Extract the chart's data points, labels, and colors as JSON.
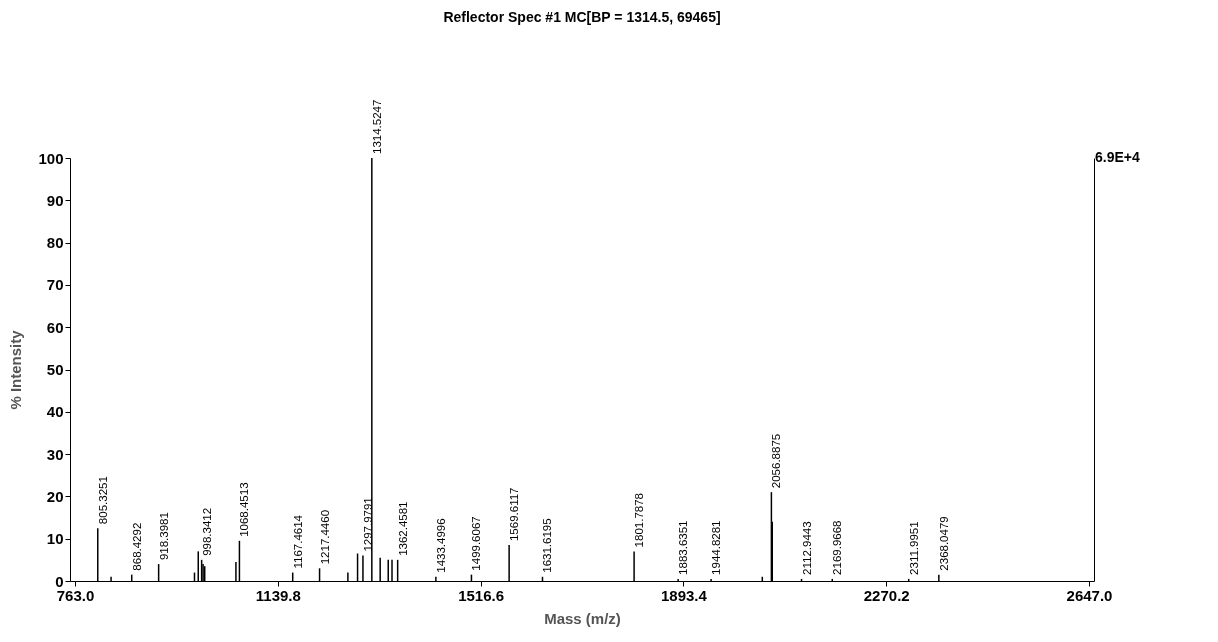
{
  "chart_data": {
    "type": "bar",
    "title": "Reflector Spec #1 MC[BP = 1314.5, 69465]",
    "xlabel": "Mass (m/z)",
    "ylabel": "% Intensity",
    "x": [
      805.3,
      830,
      868.4,
      918.4,
      985,
      992,
      998.3,
      1001,
      1004,
      1062,
      1068.5,
      1167.5,
      1217.4,
      1270,
      1288,
      1298,
      1314.5,
      1330,
      1345,
      1352,
      1362.5,
      1433.5,
      1499.6,
      1569.6,
      1631.6,
      1801.8,
      1883.6,
      1944.8,
      2040,
      2056.9,
      2058.5,
      2112.9,
      2170,
      2312,
      2368
    ],
    "series": [
      {
        "color": "#000000",
        "values": [
          12.5,
          1,
          1.5,
          4,
          2,
          7,
          5,
          4,
          3.5,
          4.5,
          9.5,
          2,
          3,
          2,
          6.5,
          6,
          100,
          5.5,
          5,
          5,
          5,
          1,
          1.5,
          8.5,
          1,
          7,
          0.5,
          0.5,
          1,
          21,
          14,
          0.5,
          0.5,
          0.5,
          1.5
        ]
      }
    ],
    "xlim": [
      763,
      2647
    ],
    "xticks": [
      {
        "value": 763,
        "label": "763.0"
      },
      {
        "value": 1139.8,
        "label": "1139.8"
      },
      {
        "value": 1516.6,
        "label": "1516.6"
      },
      {
        "value": 1893.4,
        "label": "1893.4"
      },
      {
        "value": 2270.2,
        "label": "2270.2"
      },
      {
        "value": 2647,
        "label": "2647.0"
      }
    ],
    "ylim": [
      0,
      100
    ],
    "yticks": [
      0,
      10,
      20,
      30,
      40,
      50,
      60,
      70,
      80,
      90,
      100
    ],
    "grid": false,
    "annotations": [
      "6.9E+4",
      {
        "text": "805.3251",
        "x": 805.3,
        "y": 12.5
      },
      {
        "text": "868.4292",
        "x": 868.4,
        "y": 1.5
      },
      {
        "text": "918.3981",
        "x": 918.4,
        "y": 4
      },
      {
        "text": "998.3412",
        "x": 998.3,
        "y": 5
      },
      {
        "text": "1068.4513",
        "x": 1068.5,
        "y": 9.5
      },
      {
        "text": "1167.4614",
        "x": 1167.5,
        "y": 2
      },
      {
        "text": "1217.4460",
        "x": 1217.4,
        "y": 3
      },
      {
        "text": "1297.9791",
        "x": 1298,
        "y": 6
      },
      {
        "text": "1314.5247",
        "x": 1314.5,
        "y": 100
      },
      {
        "text": "1362.4581",
        "x": 1362.5,
        "y": 5
      },
      {
        "text": "1433.4996",
        "x": 1433.5,
        "y": 1
      },
      {
        "text": "1499.6067",
        "x": 1499.6,
        "y": 1.5
      },
      {
        "text": "1569.6117",
        "x": 1569.6,
        "y": 8.5
      },
      {
        "text": "1631.6195",
        "x": 1631.6,
        "y": 1
      },
      {
        "text": "1801.7878",
        "x": 1801.8,
        "y": 7
      },
      {
        "text": "1883.6351",
        "x": 1883.6,
        "y": 0.5
      },
      {
        "text": "1944.8281",
        "x": 1944.8,
        "y": 0.5
      },
      {
        "text": "2056.8875",
        "x": 2056.9,
        "y": 21
      },
      {
        "text": "2112.9443",
        "x": 2112.9,
        "y": 0.5
      },
      {
        "text": "2169.9668",
        "x": 2170,
        "y": 0.5
      },
      {
        "text": "2311.9951",
        "x": 2312,
        "y": 0.5
      },
      {
        "text": "2368.0479",
        "x": 2368,
        "y": 1.5
      }
    ]
  }
}
